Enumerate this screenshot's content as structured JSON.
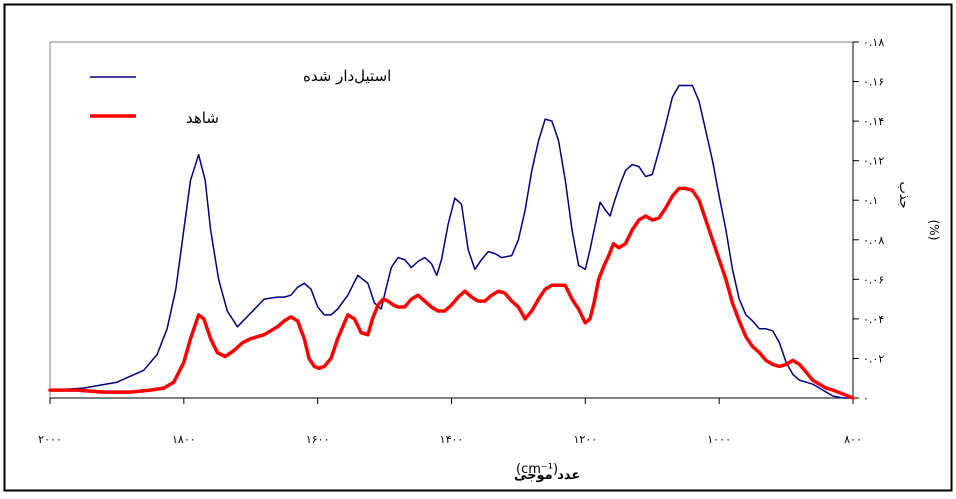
{
  "chart_data": {
    "type": "line",
    "title": "",
    "xlabel": "عدد موجی",
    "xunit": "(cm⁻¹)",
    "ylabel": "جذب",
    "yunit": "(%)",
    "xlim": [
      2000,
      800
    ],
    "ylim": [
      0,
      0.18
    ],
    "x_ticks": [
      2000,
      1800,
      1600,
      1400,
      1200,
      1000,
      800
    ],
    "x_tick_labels": [
      "۲۰۰۰",
      "۱۸۰۰",
      "۱۶۰۰",
      "۱۴۰۰",
      "۱۲۰۰",
      "۱۰۰۰",
      "۸۰۰"
    ],
    "y_ticks": [
      0,
      0.02,
      0.04,
      0.06,
      0.08,
      0.1,
      0.12,
      0.14,
      0.16,
      0.18
    ],
    "y_tick_labels": [
      "۰",
      "۰.۰۲",
      "۰.۰۴",
      "۰.۰۶",
      "۰.۰۸",
      "۰.۱",
      "۰.۱۲",
      "۰.۱۴",
      "۰.۱۶",
      "۰.۱۸"
    ],
    "grid": false,
    "legend_position": "top-left",
    "series": [
      {
        "name": "استیل‌دار شده",
        "color": "#000080",
        "x": [
          2000,
          1950,
          1900,
          1860,
          1840,
          1825,
          1812,
          1800,
          1790,
          1778,
          1768,
          1760,
          1748,
          1735,
          1720,
          1700,
          1680,
          1660,
          1650,
          1640,
          1630,
          1620,
          1610,
          1600,
          1590,
          1580,
          1570,
          1555,
          1540,
          1525,
          1515,
          1505,
          1498,
          1490,
          1480,
          1470,
          1460,
          1450,
          1440,
          1430,
          1422,
          1415,
          1405,
          1395,
          1385,
          1375,
          1365,
          1355,
          1345,
          1335,
          1325,
          1310,
          1300,
          1290,
          1280,
          1270,
          1260,
          1250,
          1240,
          1230,
          1220,
          1210,
          1200,
          1193,
          1185,
          1178,
          1170,
          1163,
          1156,
          1148,
          1140,
          1130,
          1120,
          1110,
          1100,
          1090,
          1080,
          1070,
          1060,
          1050,
          1040,
          1030,
          1020,
          1010,
          1000,
          990,
          980,
          970,
          960,
          950,
          940,
          930,
          920,
          910,
          900,
          890,
          880,
          870,
          860,
          850,
          840,
          830,
          815,
          805,
          800
        ],
        "y": [
          0.004,
          0.005,
          0.008,
          0.014,
          0.022,
          0.035,
          0.055,
          0.085,
          0.11,
          0.123,
          0.11,
          0.085,
          0.06,
          0.044,
          0.036,
          0.043,
          0.05,
          0.051,
          0.051,
          0.052,
          0.056,
          0.058,
          0.055,
          0.046,
          0.042,
          0.042,
          0.045,
          0.052,
          0.062,
          0.058,
          0.048,
          0.045,
          0.055,
          0.066,
          0.071,
          0.07,
          0.066,
          0.069,
          0.071,
          0.068,
          0.062,
          0.07,
          0.088,
          0.101,
          0.098,
          0.075,
          0.065,
          0.07,
          0.074,
          0.073,
          0.071,
          0.072,
          0.08,
          0.095,
          0.115,
          0.13,
          0.141,
          0.14,
          0.13,
          0.11,
          0.085,
          0.067,
          0.065,
          0.075,
          0.088,
          0.099,
          0.095,
          0.092,
          0.1,
          0.108,
          0.115,
          0.118,
          0.117,
          0.112,
          0.113,
          0.125,
          0.138,
          0.152,
          0.158,
          0.158,
          0.158,
          0.15,
          0.135,
          0.12,
          0.102,
          0.085,
          0.065,
          0.05,
          0.042,
          0.039,
          0.035,
          0.035,
          0.034,
          0.028,
          0.018,
          0.012,
          0.009,
          0.008,
          0.007,
          0.005,
          0.003,
          0.001,
          0.0,
          0.0,
          0.0
        ]
      },
      {
        "name": "شاهد",
        "color": "#ff0000",
        "x": [
          2000,
          1960,
          1920,
          1880,
          1850,
          1830,
          1815,
          1800,
          1790,
          1785,
          1778,
          1770,
          1760,
          1750,
          1738,
          1725,
          1712,
          1700,
          1690,
          1680,
          1670,
          1660,
          1650,
          1640,
          1630,
          1620,
          1613,
          1605,
          1598,
          1590,
          1580,
          1570,
          1555,
          1545,
          1535,
          1525,
          1518,
          1510,
          1502,
          1495,
          1487,
          1480,
          1470,
          1460,
          1450,
          1440,
          1430,
          1420,
          1410,
          1400,
          1390,
          1380,
          1370,
          1360,
          1350,
          1340,
          1330,
          1320,
          1310,
          1300,
          1290,
          1280,
          1270,
          1260,
          1250,
          1240,
          1230,
          1220,
          1210,
          1200,
          1193,
          1187,
          1180,
          1172,
          1165,
          1158,
          1150,
          1140,
          1130,
          1120,
          1110,
          1100,
          1090,
          1080,
          1070,
          1060,
          1050,
          1040,
          1030,
          1020,
          1010,
          1000,
          990,
          980,
          970,
          960,
          950,
          940,
          930,
          920,
          910,
          900,
          890,
          880,
          870,
          860,
          850,
          840,
          830,
          815,
          800
        ],
        "y": [
          0.004,
          0.004,
          0.003,
          0.003,
          0.004,
          0.005,
          0.008,
          0.018,
          0.03,
          0.035,
          0.042,
          0.04,
          0.03,
          0.023,
          0.021,
          0.024,
          0.028,
          0.03,
          0.031,
          0.032,
          0.034,
          0.036,
          0.039,
          0.041,
          0.039,
          0.03,
          0.02,
          0.016,
          0.015,
          0.016,
          0.02,
          0.03,
          0.042,
          0.04,
          0.033,
          0.032,
          0.04,
          0.047,
          0.05,
          0.049,
          0.047,
          0.046,
          0.046,
          0.05,
          0.052,
          0.049,
          0.046,
          0.044,
          0.044,
          0.047,
          0.051,
          0.054,
          0.051,
          0.049,
          0.049,
          0.052,
          0.054,
          0.053,
          0.049,
          0.046,
          0.04,
          0.044,
          0.05,
          0.055,
          0.057,
          0.057,
          0.057,
          0.05,
          0.045,
          0.038,
          0.04,
          0.048,
          0.06,
          0.067,
          0.072,
          0.078,
          0.076,
          0.078,
          0.085,
          0.09,
          0.092,
          0.09,
          0.091,
          0.096,
          0.102,
          0.106,
          0.106,
          0.105,
          0.1,
          0.09,
          0.08,
          0.07,
          0.06,
          0.048,
          0.039,
          0.031,
          0.026,
          0.023,
          0.019,
          0.017,
          0.016,
          0.017,
          0.019,
          0.017,
          0.013,
          0.009,
          0.007,
          0.005,
          0.004,
          0.002,
          0.0
        ]
      }
    ]
  }
}
